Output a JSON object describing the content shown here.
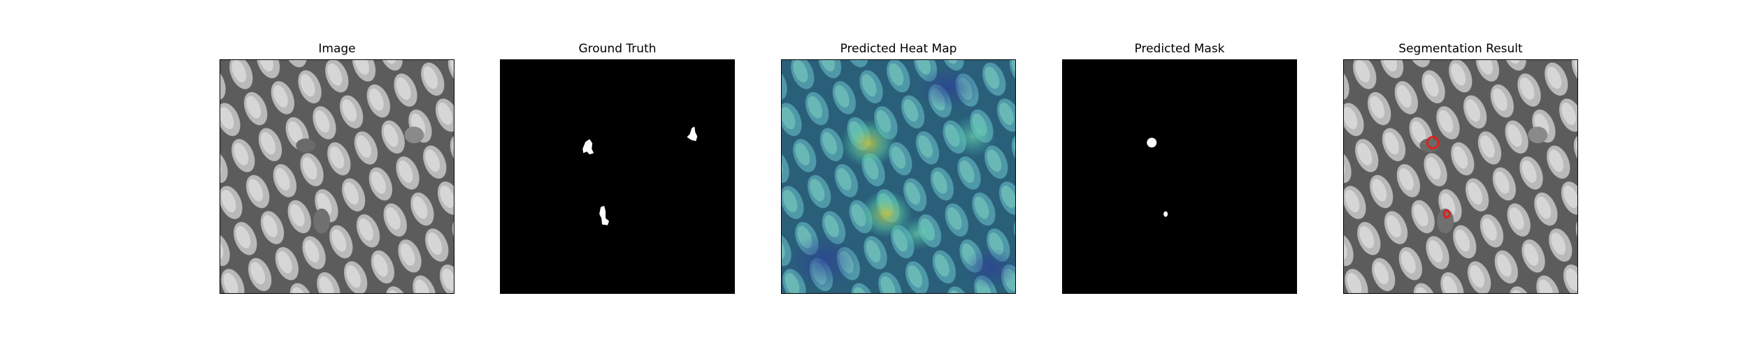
{
  "panels": [
    {
      "title": "Image",
      "content": "grayscale textured mesh image",
      "icon": "textured-image-icon"
    },
    {
      "title": "Ground Truth",
      "content": "binary ground truth mask",
      "icon": "mask-icon"
    },
    {
      "title": "Predicted Heat Map",
      "content": "heat map overlay on image",
      "icon": "heatmap-icon"
    },
    {
      "title": "Predicted Mask",
      "content": "binary predicted mask",
      "icon": "mask-icon"
    },
    {
      "title": "Segmentation Result",
      "content": "image with red contour overlay",
      "icon": "contour-icon"
    }
  ],
  "colors": {
    "mask_bg": "#000000",
    "mask_fg": "#ffffff",
    "contour": "#e0201c",
    "heat_low": "#2d3f9a",
    "heat_mid": "#3fb8a8",
    "heat_high": "#c8c23a"
  }
}
